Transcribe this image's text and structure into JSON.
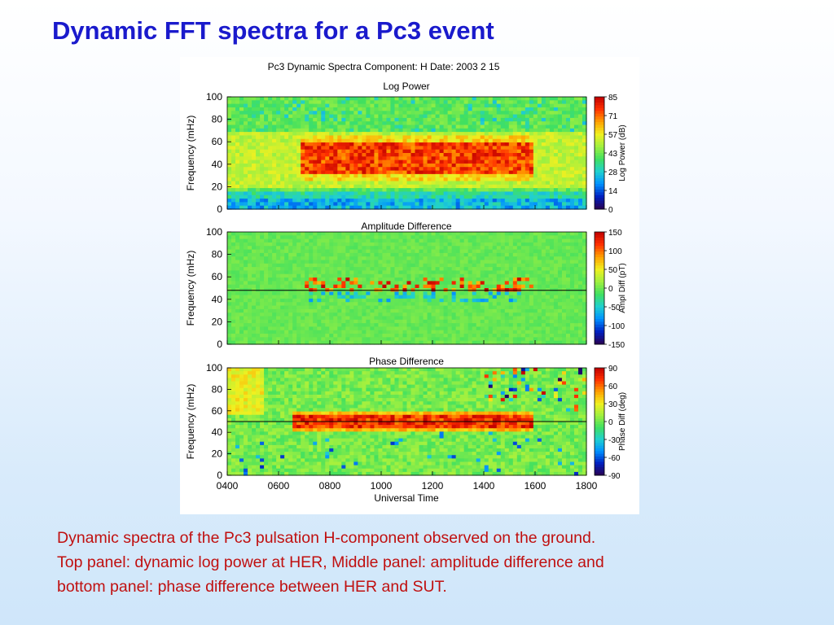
{
  "slide": {
    "title": "Dynamic FFT spectra for a Pc3 event",
    "caption_lines": [
      "Dynamic spectra of the Pc3 pulsation H-component observed on the ground.",
      "Top panel: dynamic log power at HER, Middle panel: amplitude difference and",
      "bottom panel:  phase difference between HER and SUT."
    ]
  },
  "chart_data": {
    "type": "heatmap",
    "title": "Pc3 Dynamic Spectra     Component: H     Date:  2003  2 15",
    "xlabel": "Universal Time",
    "x_ticks": [
      "0400",
      "0600",
      "0800",
      "1000",
      "1200",
      "1400",
      "1600",
      "1800"
    ],
    "x_range": [
      4,
      18
    ],
    "y_ticks": [
      0,
      20,
      40,
      60,
      80,
      100
    ],
    "y_range": [
      0,
      100
    ],
    "colormap": [
      "#2a0050",
      "#0020c0",
      "#0090ff",
      "#20d0d0",
      "#40e060",
      "#a0f040",
      "#f0f020",
      "#ffa000",
      "#ff3000",
      "#c00000"
    ],
    "panels": [
      {
        "title": "Log Power",
        "ylabel": "Frequency (mHz)",
        "colorbar_label": "Log Power (dB)",
        "colorbar_ticks": [
          85,
          71,
          57,
          43,
          28,
          14,
          0
        ],
        "vmin": 0,
        "vmax": 85,
        "band_center_mhz": 45,
        "band_start_ut": 6.8,
        "band_end_ut": 16.0
      },
      {
        "title": "Amplitude Difference",
        "ylabel": "Frequency (mHz)",
        "colorbar_label": "Ampl Diff (pT)",
        "colorbar_ticks": [
          150,
          100,
          50,
          0,
          -50,
          -100,
          -150
        ],
        "vmin": -150,
        "vmax": 150,
        "reference_line_mhz": 48,
        "band_start_ut": 6.8,
        "band_end_ut": 16.0
      },
      {
        "title": "Phase Difference",
        "ylabel": "Frequency (mHz)",
        "colorbar_label": "Phase Diff (deg)",
        "colorbar_ticks": [
          90,
          60,
          30,
          0,
          -30,
          -60,
          -90
        ],
        "vmin": -90,
        "vmax": 90,
        "reference_line_mhz": 50,
        "band_start_ut": 6.5,
        "band_end_ut": 16.0
      }
    ]
  }
}
